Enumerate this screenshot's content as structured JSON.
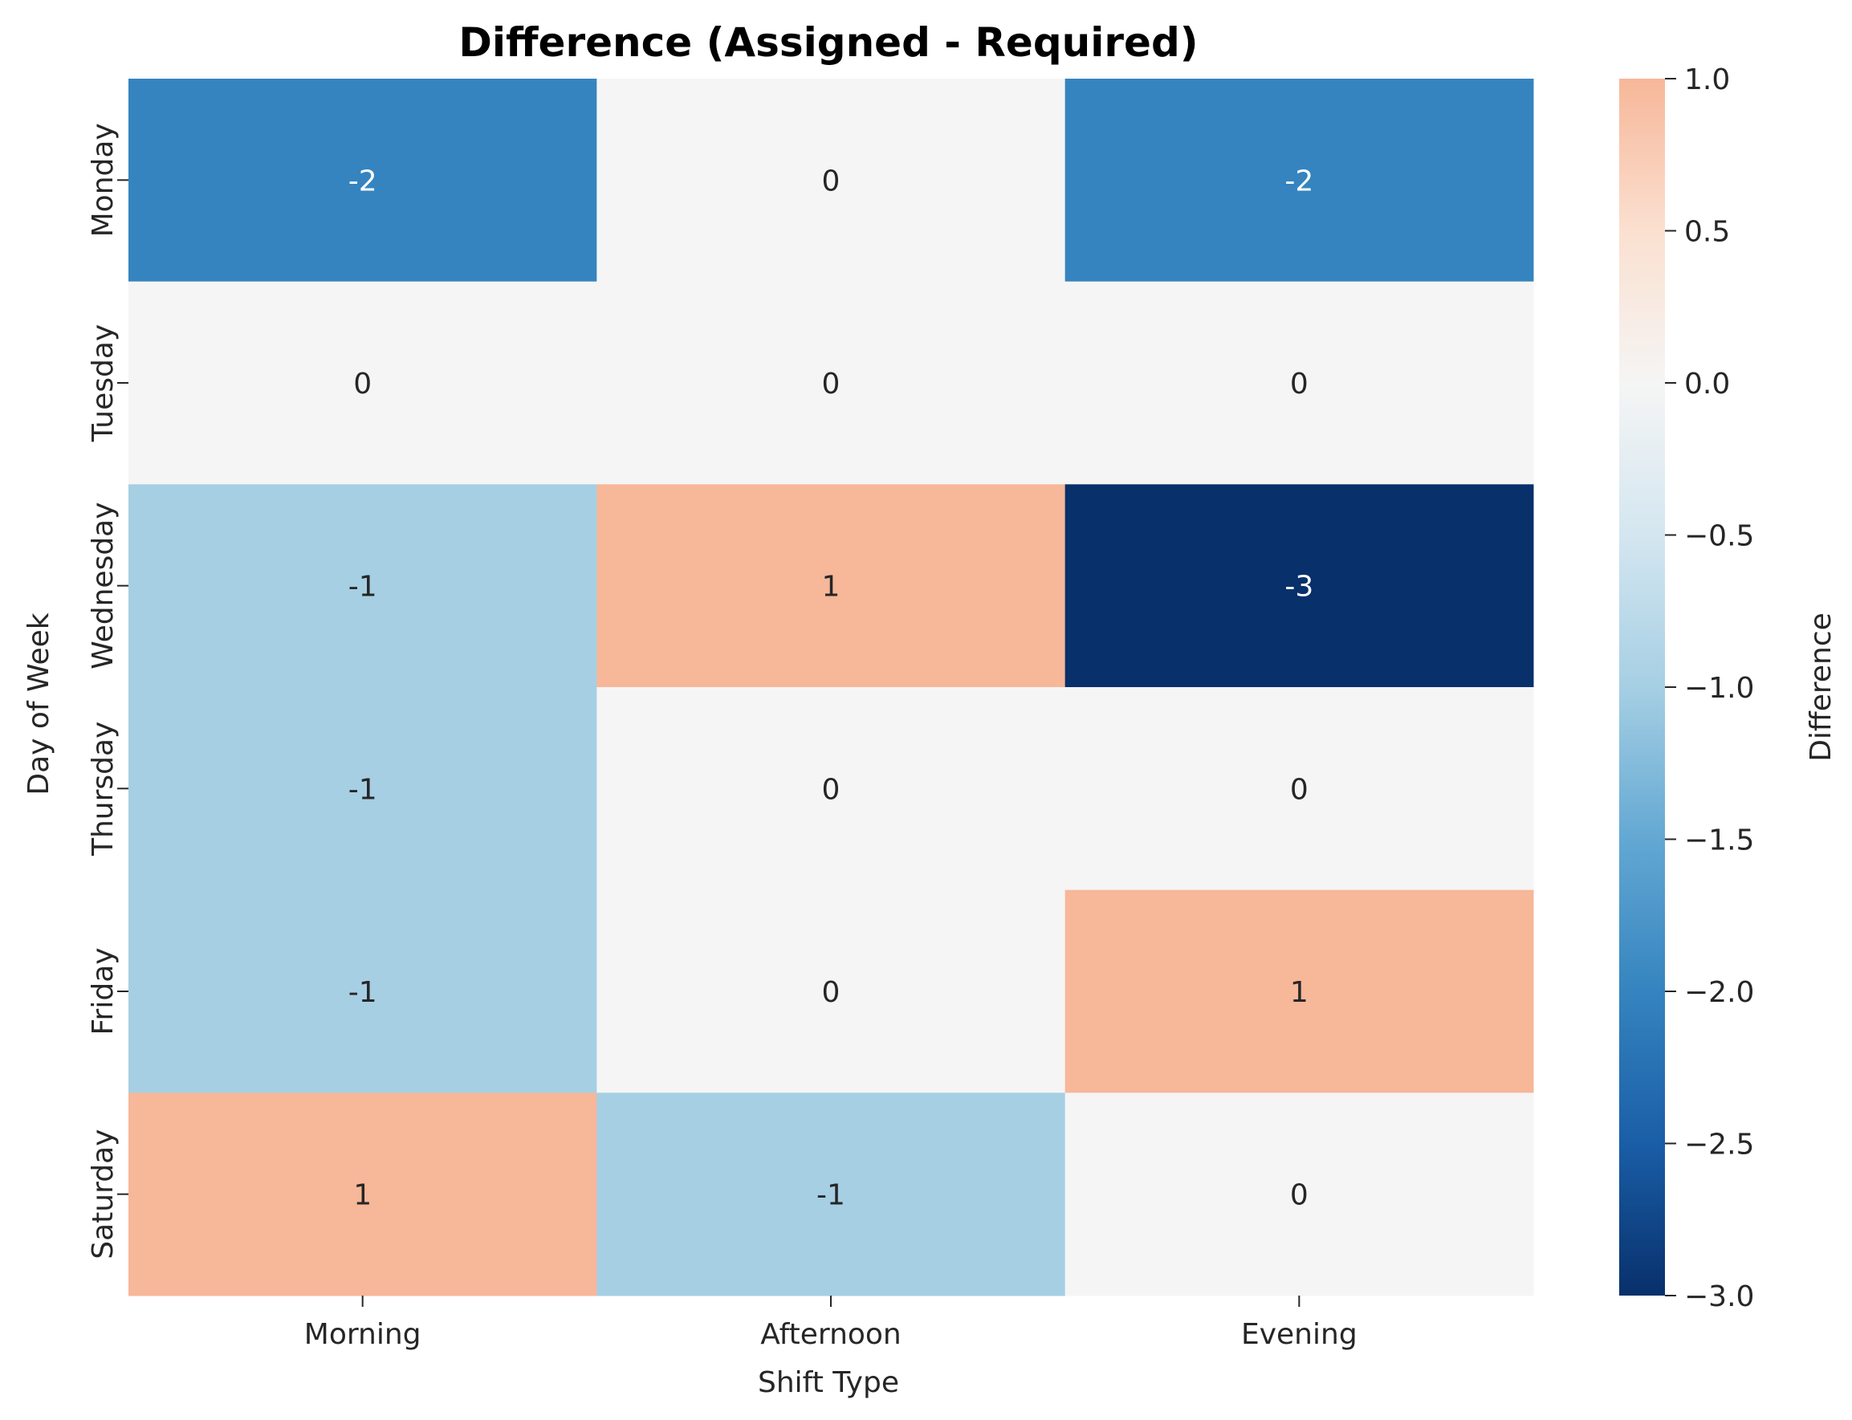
{
  "chart_data": {
    "type": "heatmap",
    "title": "Difference (Assigned - Required)",
    "xlabel": "Shift Type",
    "ylabel": "Day of Week",
    "x_categories": [
      "Morning",
      "Afternoon",
      "Evening"
    ],
    "y_categories": [
      "Monday",
      "Tuesday",
      "Wednesday",
      "Thursday",
      "Friday",
      "Saturday"
    ],
    "values": [
      [
        -2,
        0,
        -2
      ],
      [
        0,
        0,
        0
      ],
      [
        -1,
        1,
        -3
      ],
      [
        -1,
        0,
        0
      ],
      [
        -1,
        0,
        1
      ],
      [
        1,
        -1,
        0
      ]
    ],
    "cell_labels": [
      [
        "-2",
        "0",
        "-2"
      ],
      [
        "0",
        "0",
        "0"
      ],
      [
        "-1",
        "1",
        "-3"
      ],
      [
        "-1",
        "0",
        "0"
      ],
      [
        "-1",
        "0",
        "1"
      ],
      [
        "1",
        "-1",
        "0"
      ]
    ],
    "colormap": "RdBu_r",
    "color_range": [
      -3,
      1
    ],
    "colorbar": {
      "label": "Difference",
      "ticks": [
        "1.0",
        "0.5",
        "0.0",
        "−0.5",
        "−1.0",
        "−1.5",
        "−2.0",
        "−2.5",
        "−3.0"
      ],
      "tick_values": [
        1.0,
        0.5,
        0.0,
        -0.5,
        -1.0,
        -1.5,
        -2.0,
        -2.5,
        -3.0
      ],
      "placement": "right"
    },
    "colors": {
      "-3": "#08306b",
      "-2": "#3584bf",
      "-1": "#a6cfe4",
      "0": "#f5f5f5",
      "1": "#f7b799"
    }
  }
}
